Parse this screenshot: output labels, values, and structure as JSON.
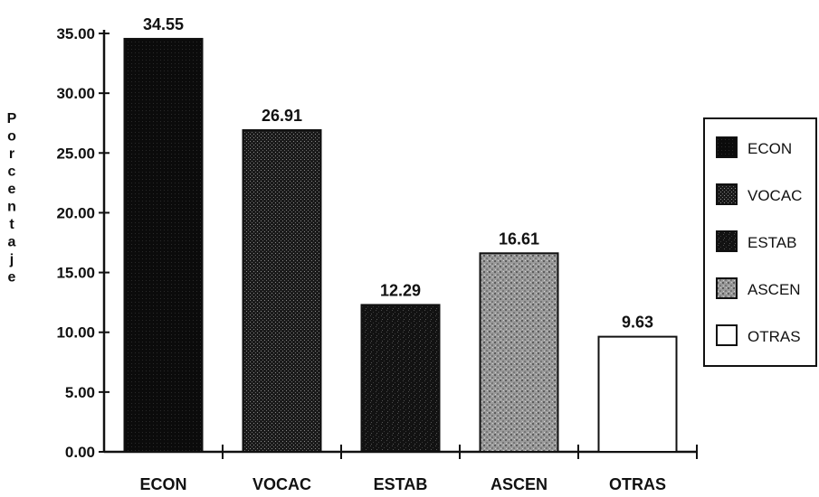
{
  "chart_data": {
    "type": "bar",
    "categories": [
      "ECON",
      "VOCAC",
      "ESTAB",
      "ASCEN",
      "OTRAS"
    ],
    "values": [
      34.55,
      26.91,
      12.29,
      16.61,
      9.63
    ],
    "data_labels": [
      "34.55",
      "26.91",
      "12.29",
      "16.61",
      "9.63"
    ],
    "ylabel": "Porcentaje",
    "ylabel_chars": [
      "P",
      "o",
      "r",
      "c",
      "e",
      "n",
      "t",
      "a",
      "j",
      "e"
    ],
    "ylim": [
      0,
      35
    ],
    "yticks": [
      0,
      5,
      10,
      15,
      20,
      25,
      30,
      35
    ],
    "ytick_labels": [
      "0.00",
      "5.00",
      "10.00",
      "15.00",
      "20.00",
      "25.00",
      "30.00",
      "35.00"
    ],
    "grid": false,
    "legend": {
      "placement": "right",
      "entries": [
        "ECON",
        "VOCAC",
        "ESTAB",
        "ASCEN",
        "OTRAS"
      ]
    },
    "fills": [
      "pattern-solid-black",
      "pattern-dark-dots",
      "pattern-dark-noise",
      "pattern-light-grid",
      "#ffffff"
    ]
  }
}
